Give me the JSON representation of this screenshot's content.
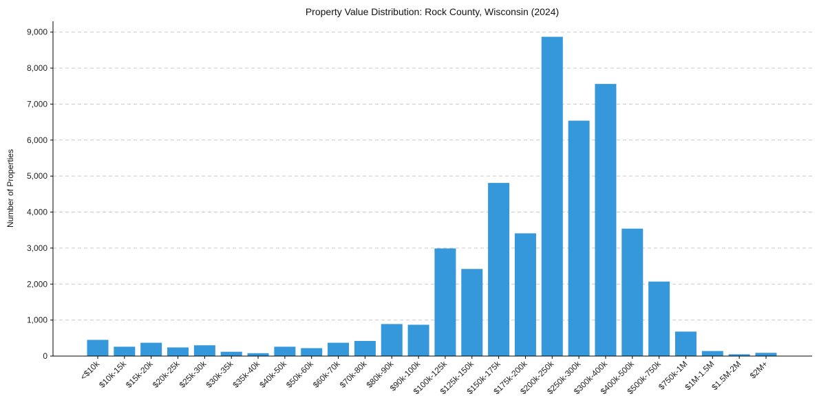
{
  "chart_data": {
    "type": "bar",
    "title": "Property Value Distribution: Rock County, Wisconsin (2024)",
    "xlabel": "",
    "ylabel": "Number of Properties",
    "ylim": [
      0,
      9300
    ],
    "yticks": [
      0,
      1000,
      2000,
      3000,
      4000,
      5000,
      6000,
      7000,
      8000,
      9000
    ],
    "ytick_labels": [
      "0",
      "1,000",
      "2,000",
      "3,000",
      "4,000",
      "5,000",
      "6,000",
      "7,000",
      "8,000",
      "9,000"
    ],
    "grid": true,
    "bar_color": "#3498db",
    "categories": [
      "<$10k",
      "$10k-15k",
      "$15k-20k",
      "$20k-25k",
      "$25k-30k",
      "$30k-35k",
      "$35k-40k",
      "$40k-50k",
      "$50k-60k",
      "$60k-70k",
      "$70k-80k",
      "$80k-90k",
      "$90k-100k",
      "$100k-125k",
      "$125k-150k",
      "$150k-175k",
      "$175k-200k",
      "$200k-250k",
      "$250k-300k",
      "$300k-400k",
      "$400k-500k",
      "$500k-750k",
      "$750k-1M",
      "$1M-1.5M",
      "$1.5M-2M",
      "$2M+"
    ],
    "values": [
      450,
      260,
      370,
      240,
      300,
      120,
      80,
      260,
      220,
      370,
      420,
      890,
      870,
      2990,
      2420,
      4810,
      3410,
      8870,
      6540,
      7560,
      3540,
      2070,
      680,
      140,
      50,
      90
    ]
  }
}
